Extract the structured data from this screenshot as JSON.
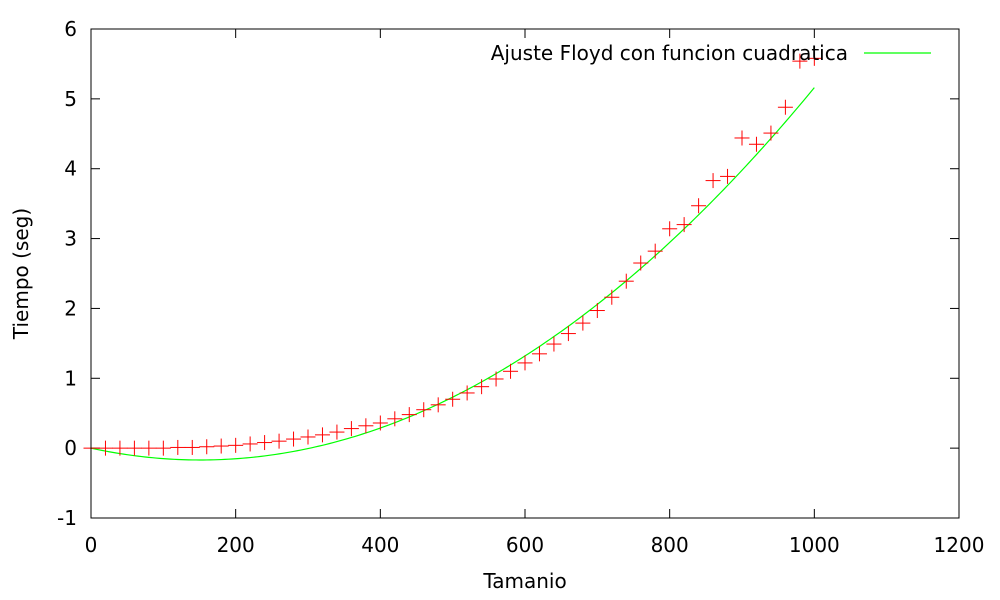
{
  "chart_data": {
    "type": "scatter",
    "title": "",
    "xlabel": "Tamanio",
    "ylabel": "Tiempo (seg)",
    "xlim": [
      0,
      1200
    ],
    "ylim": [
      -1,
      6
    ],
    "xticks": [
      "0",
      "200",
      "400",
      "600",
      "800",
      "1000",
      "1200"
    ],
    "yticks": [
      "-1",
      "0",
      "1",
      "2",
      "3",
      "4",
      "5",
      "6"
    ],
    "grid": false,
    "legend_position": "top-right",
    "colors": {
      "points": "#ff0000",
      "fit": "#00ff00",
      "frame": "#000000"
    },
    "series": [
      {
        "marker": "plus",
        "x": [
          0,
          20,
          40,
          60,
          80,
          100,
          120,
          140,
          160,
          180,
          200,
          220,
          240,
          260,
          280,
          300,
          320,
          340,
          360,
          380,
          400,
          420,
          440,
          460,
          480,
          500,
          520,
          540,
          560,
          580,
          600,
          620,
          640,
          660,
          680,
          700,
          720,
          740,
          760,
          780,
          800,
          820,
          840,
          860,
          880,
          900,
          920,
          940,
          960,
          980,
          1000
        ],
        "y": [
          0.0,
          0.0,
          0.0,
          0.0,
          0.0,
          0.0,
          0.01,
          0.01,
          0.02,
          0.03,
          0.04,
          0.06,
          0.08,
          0.1,
          0.13,
          0.16,
          0.19,
          0.23,
          0.28,
          0.32,
          0.36,
          0.42,
          0.48,
          0.55,
          0.62,
          0.7,
          0.79,
          0.88,
          0.99,
          1.1,
          1.22,
          1.35,
          1.49,
          1.64,
          1.79,
          1.97,
          2.16,
          2.39,
          2.65,
          2.82,
          3.14,
          3.2,
          3.47,
          3.83,
          3.89,
          4.44,
          4.35,
          4.51,
          4.88,
          5.54,
          5.58
        ]
      },
      {
        "name": "Ajuste Floyd con funcion cuadratica",
        "type": "line",
        "x_range": [
          0,
          1000
        ],
        "coefficients": {
          "a": 7.4e-06,
          "b": -0.00224,
          "c": 0.0
        }
      }
    ]
  }
}
